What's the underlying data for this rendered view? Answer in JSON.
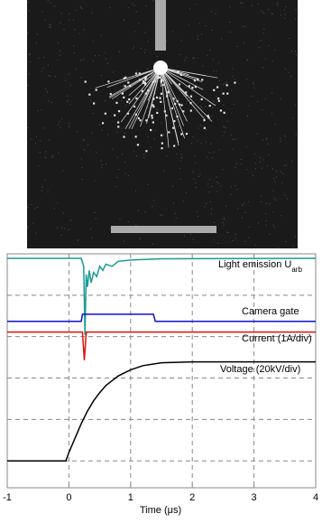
{
  "chart_data": {
    "type": "line",
    "xlabel": "Time (μs)",
    "xlim": [
      -1,
      4
    ],
    "xticks": [
      -1,
      0,
      1,
      2,
      3,
      4
    ],
    "ylim": [
      -0.65,
      5
    ],
    "ygrid": [
      0,
      1,
      2,
      3,
      4
    ],
    "grid": true,
    "series": [
      {
        "name": "Light emission U",
        "name_sub": "arb",
        "color": "#1a9a96",
        "x": [
          -1,
          0.2,
          0.24,
          0.26,
          0.28,
          0.3,
          0.33,
          0.36,
          0.4,
          0.45,
          0.5,
          0.55,
          0.6,
          0.7,
          0.8,
          1.0,
          1.5,
          4
        ],
        "values": [
          4.89,
          4.89,
          4.7,
          3.04,
          4.5,
          4.2,
          4.6,
          4.3,
          4.55,
          4.45,
          4.7,
          4.6,
          4.75,
          4.7,
          4.82,
          4.85,
          4.88,
          4.89
        ]
      },
      {
        "name": "Camera gate",
        "color": "#1010d0",
        "x": [
          -1,
          0.2,
          0.22,
          1.37,
          1.4,
          4
        ],
        "values": [
          3.37,
          3.37,
          3.54,
          3.54,
          3.37,
          3.37
        ]
      },
      {
        "name": "Current (1A/div)",
        "color": "#e01010",
        "x": [
          -1,
          0.22,
          0.25,
          0.28,
          4
        ],
        "values": [
          3.11,
          3.11,
          2.43,
          3.11,
          3.11
        ]
      },
      {
        "name": "Voltage (20kV/div)",
        "color": "#000000",
        "x": [
          -1,
          -0.5,
          -0.05,
          0,
          0.1,
          0.2,
          0.3,
          0.4,
          0.5,
          0.6,
          0.8,
          1.0,
          1.2,
          1.5,
          2,
          3,
          4
        ],
        "values": [
          0,
          0,
          0,
          0.2,
          0.55,
          0.9,
          1.2,
          1.45,
          1.65,
          1.82,
          2.05,
          2.2,
          2.3,
          2.37,
          2.39,
          2.39,
          2.39
        ]
      }
    ]
  }
}
